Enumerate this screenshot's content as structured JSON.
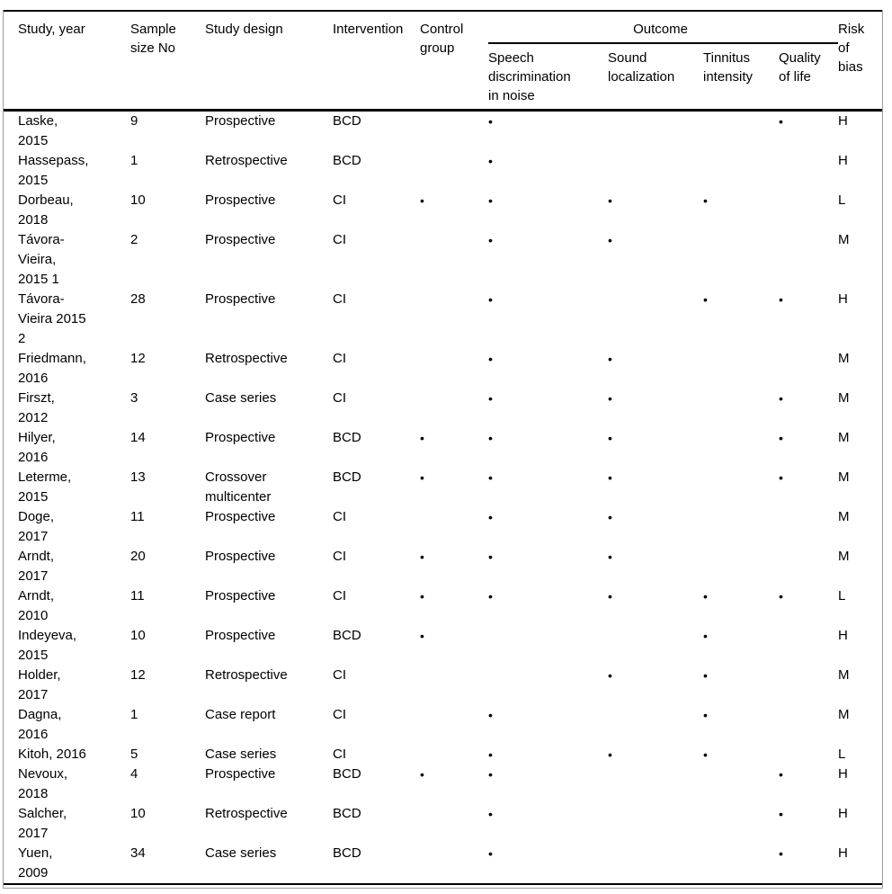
{
  "table": {
    "bullet": "•",
    "header": {
      "study": "Study, year",
      "sample": "Sample\nsize No",
      "design": "Study design",
      "intervention": "Intervention",
      "control": "Control\ngroup",
      "outcome": "Outcome",
      "outcome_sub": {
        "speech": "Speech\ndiscrimination\nin noise",
        "sound": "Sound\nlocalization",
        "tinnitus": "Tinnitus\nintensity",
        "quality": "Quality\nof life"
      },
      "risk": "Risk\nof\nbias"
    },
    "rows": [
      {
        "study": "Laske,\n2015",
        "sample": "9",
        "design": "Prospective",
        "intervention": "BCD",
        "control": false,
        "speech": true,
        "sound": false,
        "tinnitus": false,
        "quality": true,
        "risk": "H"
      },
      {
        "study": "Hassepass,\n2015",
        "sample": "1",
        "design": "Retrospective",
        "intervention": "BCD",
        "control": false,
        "speech": true,
        "sound": false,
        "tinnitus": false,
        "quality": false,
        "risk": "H"
      },
      {
        "study": "Dorbeau,\n2018",
        "sample": "10",
        "design": "Prospective",
        "intervention": "CI",
        "control": true,
        "speech": true,
        "sound": true,
        "tinnitus": true,
        "quality": false,
        "risk": "L"
      },
      {
        "study": "Távora-\nVieira,\n2015 1",
        "sample": "2",
        "design": "Prospective",
        "intervention": "CI",
        "control": false,
        "speech": true,
        "sound": true,
        "tinnitus": false,
        "quality": false,
        "risk": "M"
      },
      {
        "study": "Távora-\nVieira 2015\n2",
        "sample": "28",
        "design": "Prospective",
        "intervention": "CI",
        "control": false,
        "speech": true,
        "sound": false,
        "tinnitus": true,
        "quality": true,
        "risk": "H"
      },
      {
        "study": "Friedmann,\n2016",
        "sample": "12",
        "design": "Retrospective",
        "intervention": "CI",
        "control": false,
        "speech": true,
        "sound": true,
        "tinnitus": false,
        "quality": false,
        "risk": "M"
      },
      {
        "study": "Firszt,\n2012",
        "sample": "3",
        "design": "Case series",
        "intervention": "CI",
        "control": false,
        "speech": true,
        "sound": true,
        "tinnitus": false,
        "quality": true,
        "risk": "M"
      },
      {
        "study": "Hilyer,\n2016",
        "sample": "14",
        "design": "Prospective",
        "intervention": "BCD",
        "control": true,
        "speech": true,
        "sound": true,
        "tinnitus": false,
        "quality": true,
        "risk": "M"
      },
      {
        "study": "Leterme,\n2015",
        "sample": "13",
        "design": "Crossover\nmulticenter",
        "intervention": "BCD",
        "control": true,
        "speech": true,
        "sound": true,
        "tinnitus": false,
        "quality": true,
        "risk": "M"
      },
      {
        "study": "Doge,\n2017",
        "sample": "11",
        "design": "Prospective",
        "intervention": "CI",
        "control": false,
        "speech": true,
        "sound": true,
        "tinnitus": false,
        "quality": false,
        "risk": "M"
      },
      {
        "study": "Arndt,\n2017",
        "sample": "20",
        "design": "Prospective",
        "intervention": "CI",
        "control": true,
        "speech": true,
        "sound": true,
        "tinnitus": false,
        "quality": false,
        "risk": "M"
      },
      {
        "study": "Arndt,\n2010",
        "sample": "11",
        "design": "Prospective",
        "intervention": "CI",
        "control": true,
        "speech": true,
        "sound": true,
        "tinnitus": true,
        "quality": true,
        "risk": "L"
      },
      {
        "study": "Indeyeva,\n2015",
        "sample": "10",
        "design": "Prospective",
        "intervention": "BCD",
        "control": true,
        "speech": false,
        "sound": false,
        "tinnitus": true,
        "quality": false,
        "risk": "H"
      },
      {
        "study": "Holder,\n2017",
        "sample": "12",
        "design": "Retrospective",
        "intervention": "CI",
        "control": false,
        "speech": false,
        "sound": true,
        "tinnitus": true,
        "quality": false,
        "risk": "M"
      },
      {
        "study": "Dagna,\n2016",
        "sample": "1",
        "design": "Case report",
        "intervention": "CI",
        "control": false,
        "speech": true,
        "sound": false,
        "tinnitus": true,
        "quality": false,
        "risk": "M"
      },
      {
        "study": "Kitoh, 2016",
        "sample": "5",
        "design": "Case series",
        "intervention": "CI",
        "control": false,
        "speech": true,
        "sound": true,
        "tinnitus": true,
        "quality": false,
        "risk": "L"
      },
      {
        "study": "Nevoux,\n2018",
        "sample": "4",
        "design": "Prospective",
        "intervention": "BCD",
        "control": true,
        "speech": true,
        "sound": false,
        "tinnitus": false,
        "quality": true,
        "risk": "H"
      },
      {
        "study": "Salcher,\n2017",
        "sample": "10",
        "design": "Retrospective",
        "intervention": "BCD",
        "control": false,
        "speech": true,
        "sound": false,
        "tinnitus": false,
        "quality": true,
        "risk": "H"
      },
      {
        "study": "Yuen,\n2009",
        "sample": "34",
        "design": "Case series",
        "intervention": "BCD",
        "control": false,
        "speech": true,
        "sound": false,
        "tinnitus": false,
        "quality": true,
        "risk": "H"
      }
    ]
  }
}
